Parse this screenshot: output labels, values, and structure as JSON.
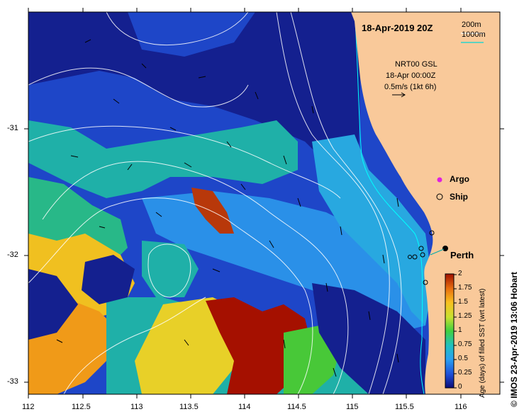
{
  "map": {
    "title": "18-Apr-2019 20Z",
    "credit": "© IMOS 23-Apr-2019 13:06 Hobart",
    "x_ticks": [
      "112",
      "112.5",
      "113",
      "113.5",
      "114",
      "114.5",
      "115",
      "115.5",
      "116"
    ],
    "y_ticks": [
      "-31",
      "-32",
      "-33"
    ],
    "contour_legend": {
      "shallow": "200m",
      "deep": "1000m"
    },
    "current_legend": {
      "line1": "NRT00 GSL",
      "line2": "18-Apr 00:00Z",
      "line3": "0.5m/s (1kt 6h)"
    },
    "markers": {
      "argo": "Argo",
      "ship": "Ship",
      "city": "Perth"
    },
    "colorbar": {
      "label": "Age (days) of filled SST (wrt latest)",
      "ticks": [
        "0",
        "0.25",
        "0.5",
        "0.75",
        "1",
        "1.25",
        "1.5",
        "1.75",
        "2"
      ],
      "range": [
        0,
        2
      ]
    },
    "colors": {
      "land": "#f9c99a",
      "argo": "#e020e0",
      "contour": "#ffffff",
      "coastal_contour": "#00ffff"
    }
  }
}
